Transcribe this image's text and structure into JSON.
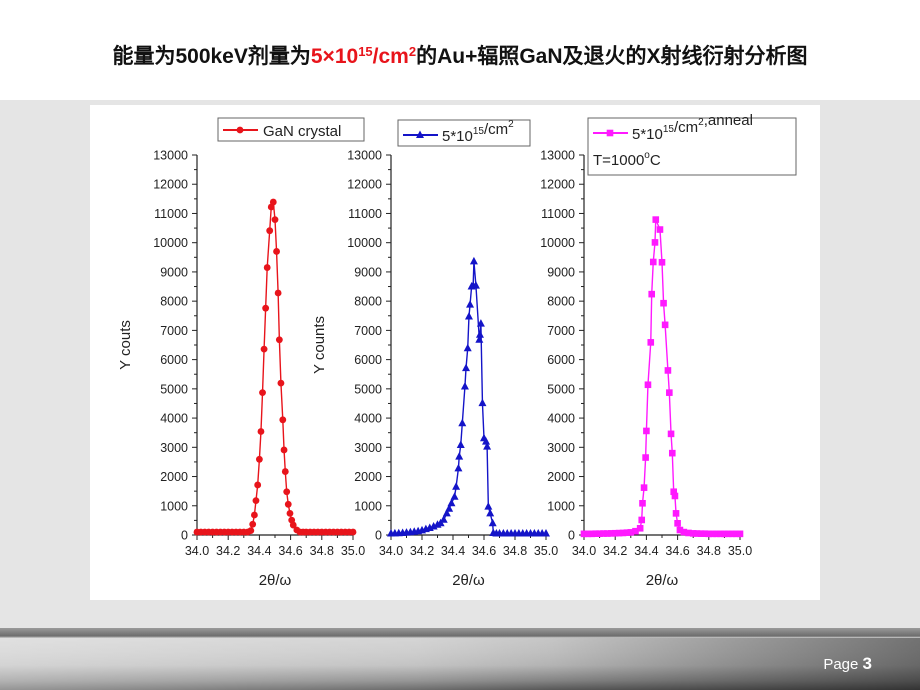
{
  "slide": {
    "title": {
      "part1": "能量为500keV剂量为",
      "dose_base": "5×10",
      "dose_exp": "15",
      "dose_unit": "/cm",
      "dose_unit_exp": "2",
      "part2": "的Au+辐照GaN及退火的X射线衍射分析图"
    },
    "footer": {
      "page_label": "Page",
      "page_number": "3"
    }
  },
  "chart_data": [
    {
      "type": "line",
      "marker": "circle",
      "color": "#e8141b",
      "legend": {
        "text": "GaN crystal",
        "placement": "top"
      },
      "xlabel": "2θ/ω",
      "ylabel": "Y couts",
      "xlim": [
        34.0,
        35.0
      ],
      "ylim": [
        0,
        13000
      ],
      "xticks": [
        "34.0",
        "34.2",
        "34.4",
        "34.6",
        "34.8",
        "35.0"
      ],
      "yticks": [
        "0",
        "1000",
        "2000",
        "3000",
        "4000",
        "5000",
        "6000",
        "7000",
        "8000",
        "9000",
        "10000",
        "11000",
        "12000",
        "13000"
      ],
      "grid": false,
      "points": [
        [
          34.0,
          100
        ],
        [
          34.025,
          100
        ],
        [
          34.05,
          100
        ],
        [
          34.075,
          100
        ],
        [
          34.1,
          100
        ],
        [
          34.125,
          100
        ],
        [
          34.15,
          100
        ],
        [
          34.175,
          100
        ],
        [
          34.2,
          100
        ],
        [
          34.225,
          100
        ],
        [
          34.25,
          100
        ],
        [
          34.275,
          100
        ],
        [
          34.3,
          100
        ],
        [
          34.325,
          100
        ],
        [
          34.345,
          150
        ],
        [
          34.357,
          366
        ],
        [
          34.368,
          685
        ],
        [
          34.378,
          1175
        ],
        [
          34.389,
          1712
        ],
        [
          34.4,
          2590
        ],
        [
          34.41,
          3540
        ],
        [
          34.42,
          4870
        ],
        [
          34.43,
          6360
        ],
        [
          34.44,
          7760
        ],
        [
          34.45,
          9150
        ],
        [
          34.466,
          10410
        ],
        [
          34.476,
          11220
        ],
        [
          34.489,
          11390
        ],
        [
          34.5,
          10790
        ],
        [
          34.51,
          9700
        ],
        [
          34.52,
          8280
        ],
        [
          34.528,
          6680
        ],
        [
          34.538,
          5195
        ],
        [
          34.55,
          3940
        ],
        [
          34.558,
          2910
        ],
        [
          34.566,
          2170
        ],
        [
          34.575,
          1480
        ],
        [
          34.585,
          1050
        ],
        [
          34.596,
          740
        ],
        [
          34.607,
          510
        ],
        [
          34.617,
          340
        ],
        [
          34.64,
          170
        ],
        [
          34.66,
          100
        ],
        [
          34.68,
          100
        ],
        [
          34.7,
          100
        ],
        [
          34.725,
          100
        ],
        [
          34.75,
          100
        ],
        [
          34.775,
          100
        ],
        [
          34.8,
          100
        ],
        [
          34.825,
          100
        ],
        [
          34.85,
          100
        ],
        [
          34.875,
          100
        ],
        [
          34.9,
          100
        ],
        [
          34.925,
          100
        ],
        [
          34.95,
          100
        ],
        [
          34.975,
          100
        ],
        [
          35.0,
          100
        ]
      ]
    },
    {
      "type": "line",
      "marker": "triangle",
      "color": "#1414c8",
      "legend": {
        "base": "5*10",
        "exp": "15",
        "unit": "/cm",
        "unit_exp": "2",
        "placement": "top"
      },
      "xlabel": "2θ/ω",
      "ylabel": "Y counts",
      "xlim": [
        34.0,
        35.0
      ],
      "ylim": [
        0,
        13000
      ],
      "xticks": [
        "34.0",
        "34.2",
        "34.4",
        "34.6",
        "34.8",
        "35.0"
      ],
      "yticks": [
        "0",
        "1000",
        "2000",
        "3000",
        "4000",
        "5000",
        "6000",
        "7000",
        "8000",
        "9000",
        "10000",
        "11000",
        "12000",
        "13000"
      ],
      "grid": false,
      "points": [
        [
          34.0,
          50
        ],
        [
          34.025,
          55
        ],
        [
          34.05,
          60
        ],
        [
          34.075,
          70
        ],
        [
          34.1,
          80
        ],
        [
          34.125,
          95
        ],
        [
          34.15,
          110
        ],
        [
          34.175,
          130
        ],
        [
          34.2,
          160
        ],
        [
          34.225,
          200
        ],
        [
          34.25,
          240
        ],
        [
          34.275,
          290
        ],
        [
          34.3,
          350
        ],
        [
          34.32,
          400
        ],
        [
          34.34,
          520
        ],
        [
          34.36,
          740
        ],
        [
          34.375,
          900
        ],
        [
          34.39,
          1085
        ],
        [
          34.41,
          1310
        ],
        [
          34.42,
          1650
        ],
        [
          34.435,
          2280
        ],
        [
          34.44,
          2680
        ],
        [
          34.45,
          3080
        ],
        [
          34.46,
          3825
        ],
        [
          34.477,
          5080
        ],
        [
          34.484,
          5710
        ],
        [
          34.495,
          6390
        ],
        [
          34.503,
          7475
        ],
        [
          34.51,
          7880
        ],
        [
          34.52,
          8500
        ],
        [
          34.53,
          8530
        ],
        [
          34.535,
          9360
        ],
        [
          34.548,
          8530
        ],
        [
          34.57,
          6680
        ],
        [
          34.574,
          6850
        ],
        [
          34.58,
          7230
        ],
        [
          34.59,
          4510
        ],
        [
          34.6,
          3310
        ],
        [
          34.613,
          3195
        ],
        [
          34.62,
          3025
        ],
        [
          34.628,
          970
        ],
        [
          34.64,
          740
        ],
        [
          34.656,
          400
        ],
        [
          34.66,
          70
        ],
        [
          34.68,
          50
        ],
        [
          34.7,
          50
        ],
        [
          34.725,
          50
        ],
        [
          34.75,
          50
        ],
        [
          34.775,
          50
        ],
        [
          34.8,
          50
        ],
        [
          34.825,
          50
        ],
        [
          34.85,
          50
        ],
        [
          34.875,
          50
        ],
        [
          34.9,
          50
        ],
        [
          34.925,
          50
        ],
        [
          34.95,
          50
        ],
        [
          34.975,
          50
        ],
        [
          35.0,
          50
        ]
      ]
    },
    {
      "type": "line",
      "marker": "square",
      "color": "#ff19ff",
      "legend": {
        "base": "5*10",
        "exp": "15",
        "unit": "/cm",
        "unit_exp": "2",
        "suffix": ",anneal",
        "line2_prefix": "T=1000",
        "line2_sup": "o",
        "line2_suffix": "C",
        "placement": "top-right"
      },
      "xlabel": "2θ/ω",
      "ylabel": "",
      "xlim": [
        34.0,
        35.0
      ],
      "ylim": [
        0,
        13000
      ],
      "xticks": [
        "34.0",
        "34.2",
        "34.4",
        "34.6",
        "34.8",
        "35.0"
      ],
      "yticks": [
        "0",
        "1000",
        "2000",
        "3000",
        "4000",
        "5000",
        "6000",
        "7000",
        "8000",
        "9000",
        "10000",
        "11000",
        "12000",
        "13000"
      ],
      "grid": false,
      "points": [
        [
          34.0,
          40
        ],
        [
          34.025,
          40
        ],
        [
          34.05,
          40
        ],
        [
          34.075,
          45
        ],
        [
          34.1,
          45
        ],
        [
          34.125,
          50
        ],
        [
          34.15,
          50
        ],
        [
          34.175,
          55
        ],
        [
          34.2,
          60
        ],
        [
          34.225,
          65
        ],
        [
          34.25,
          70
        ],
        [
          34.275,
          80
        ],
        [
          34.3,
          90
        ],
        [
          34.33,
          130
        ],
        [
          34.36,
          230
        ],
        [
          34.37,
          515
        ],
        [
          34.375,
          1085
        ],
        [
          34.385,
          1620
        ],
        [
          34.395,
          2650
        ],
        [
          34.4,
          3560
        ],
        [
          34.41,
          5140
        ],
        [
          34.428,
          6590
        ],
        [
          34.434,
          8240
        ],
        [
          34.444,
          9340
        ],
        [
          34.455,
          10010
        ],
        [
          34.46,
          10790
        ],
        [
          34.487,
          10450
        ],
        [
          34.5,
          9330
        ],
        [
          34.51,
          7930
        ],
        [
          34.52,
          7190
        ],
        [
          34.538,
          5630
        ],
        [
          34.547,
          4870
        ],
        [
          34.558,
          3460
        ],
        [
          34.566,
          2800
        ],
        [
          34.575,
          1480
        ],
        [
          34.583,
          1335
        ],
        [
          34.59,
          740
        ],
        [
          34.6,
          400
        ],
        [
          34.615,
          170
        ],
        [
          34.64,
          100
        ],
        [
          34.67,
          70
        ],
        [
          34.7,
          55
        ],
        [
          34.725,
          50
        ],
        [
          34.75,
          45
        ],
        [
          34.775,
          45
        ],
        [
          34.8,
          40
        ],
        [
          34.825,
          40
        ],
        [
          34.85,
          40
        ],
        [
          34.875,
          40
        ],
        [
          34.9,
          40
        ],
        [
          34.925,
          40
        ],
        [
          34.95,
          40
        ],
        [
          34.975,
          40
        ],
        [
          35.0,
          40
        ]
      ]
    }
  ]
}
